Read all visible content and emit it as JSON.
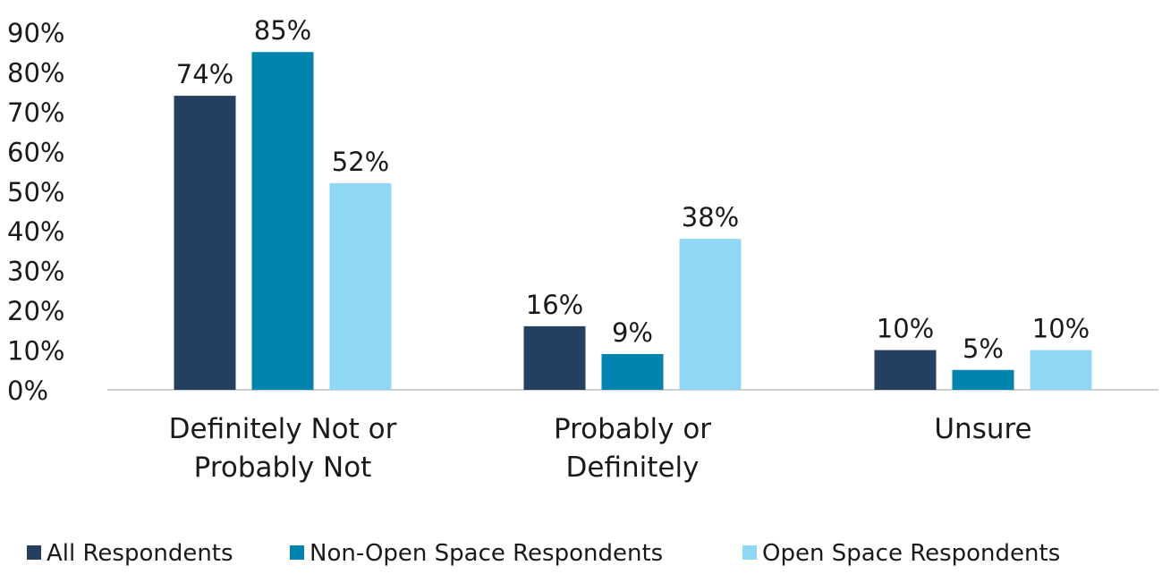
{
  "chart_data": {
    "type": "bar",
    "categories": [
      [
        "Definitely Not or",
        "Probably Not"
      ],
      [
        "Probably or",
        "Definitely"
      ],
      [
        "Unsure"
      ]
    ],
    "series": [
      {
        "name": "All Respondents",
        "color": "#243f60",
        "values": [
          74,
          16,
          10
        ]
      },
      {
        "name": "Non-Open Space Respondents",
        "color": "#0083ad",
        "values": [
          85,
          9,
          5
        ]
      },
      {
        "name": "Open Space Respondents",
        "color": "#8fd7f5",
        "values": [
          52,
          38,
          10
        ]
      }
    ],
    "data_labels": [
      [
        "74%",
        "16%",
        "10%"
      ],
      [
        "85%",
        "9%",
        "5%"
      ],
      [
        "52%",
        "38%",
        "10%"
      ]
    ],
    "y_ticks": [
      "0%",
      "10%",
      "20%",
      "30%",
      "40%",
      "50%",
      "60%",
      "70%",
      "80%",
      "90%"
    ],
    "ylim": [
      0,
      90
    ],
    "legend_position": "bottom",
    "grid": false,
    "axis_color": "#d0d0d0"
  }
}
